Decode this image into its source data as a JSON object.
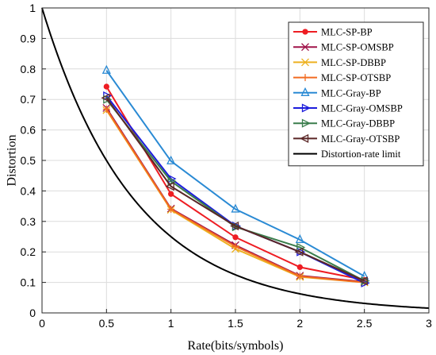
{
  "chart_data": {
    "type": "line",
    "xlabel": "Rate(bits/symbols)",
    "ylabel": "Distortion",
    "xlim": [
      0,
      3
    ],
    "ylim": [
      0,
      1
    ],
    "xticks": [
      "0",
      "0.5",
      "1",
      "1.5",
      "2",
      "2.5",
      "3"
    ],
    "yticks": [
      "0",
      "0.1",
      "0.2",
      "0.3",
      "0.4",
      "0.5",
      "0.6",
      "0.7",
      "0.8",
      "0.9",
      "1"
    ],
    "grid": true,
    "legend_position": "top-right",
    "x": [
      0.5,
      1,
      1.5,
      2,
      2.5
    ],
    "series": [
      {
        "name": "MLC-SP-BP",
        "color": "#ee1d23",
        "marker": "circle",
        "values": [
          0.742,
          0.39,
          0.248,
          0.15,
          0.108
        ]
      },
      {
        "name": "MLC-SP-OMSBP",
        "color": "#a0134a",
        "marker": "x",
        "values": [
          0.672,
          0.342,
          0.222,
          0.122,
          0.102
        ]
      },
      {
        "name": "MLC-SP-DBBP",
        "color": "#edb120",
        "marker": "x",
        "values": [
          0.665,
          0.338,
          0.21,
          0.118,
          0.1
        ]
      },
      {
        "name": "MLC-SP-OTSBP",
        "color": "#f26b21",
        "marker": "plus",
        "values": [
          0.668,
          0.34,
          0.218,
          0.12,
          0.1
        ]
      },
      {
        "name": "MLC-Gray-BP",
        "color": "#2a8ad4",
        "marker": "triangle-up",
        "values": [
          0.795,
          0.498,
          0.34,
          0.24,
          0.12
        ]
      },
      {
        "name": "MLC-Gray-OMSBP",
        "color": "#1c1cdc",
        "marker": "triangle-right",
        "values": [
          0.712,
          0.44,
          0.285,
          0.2,
          0.098
        ]
      },
      {
        "name": "MLC-Gray-DBBP",
        "color": "#3a7d4c",
        "marker": "triangle-right",
        "values": [
          0.7,
          0.432,
          0.282,
          0.215,
          0.105
        ]
      },
      {
        "name": "MLC-Gray-OTSBP",
        "color": "#5a2626",
        "marker": "triangle-left",
        "values": [
          0.705,
          0.415,
          0.285,
          0.2,
          0.105
        ]
      }
    ],
    "limit_curve": {
      "name": "Distortion-rate limit",
      "color": "#000000",
      "formula": "D = 2^(-2R)"
    }
  }
}
